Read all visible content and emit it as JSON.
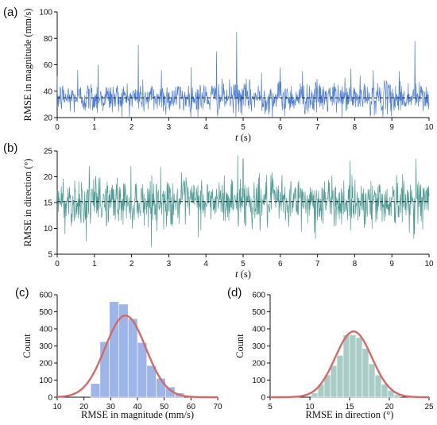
{
  "panel_labels": [
    "(a)",
    "(b)",
    "(c)",
    "(d)"
  ],
  "colors": {
    "magnitude": "#4f7fd6",
    "direction": "#4f9b95",
    "hist_magnitude": "#9db5e8",
    "hist_direction": "#a9ccc7",
    "fit_curve": "#d46a66",
    "mean_line": "#222222"
  },
  "chart_data": [
    {
      "id": "a",
      "type": "line",
      "xlabel_var": "t",
      "xlabel_unit": " (s)",
      "ylabel": "RMSE in magnitude (mm/s)",
      "xlim": [
        0,
        10
      ],
      "ylim": [
        20,
        100
      ],
      "xticks": [
        0,
        1,
        2,
        3,
        4,
        5,
        6,
        7,
        8,
        9,
        10
      ],
      "yticks": [
        20,
        40,
        60,
        80,
        100
      ],
      "mean": 35,
      "series": [
        {
          "description": "noisy RMSE time series, ~1000 samples over 10 s, fluctuating mostly 25-55 around mean ~35, isolated spikes up to ~85",
          "n_samples": 1000,
          "baseline": 35,
          "noise_sd": 6,
          "spikes": [
            [
              0.55,
              56
            ],
            [
              1.1,
              60
            ],
            [
              2.18,
              75
            ],
            [
              2.8,
              56
            ],
            [
              3.6,
              58
            ],
            [
              4.28,
              70
            ],
            [
              4.82,
              85
            ],
            [
              5.5,
              54
            ],
            [
              6.0,
              58
            ],
            [
              6.6,
              55
            ],
            [
              7.9,
              57
            ],
            [
              8.5,
              56
            ],
            [
              9.2,
              55
            ],
            [
              9.62,
              78
            ]
          ]
        }
      ]
    },
    {
      "id": "b",
      "type": "line",
      "xlabel_var": "t",
      "xlabel_unit": " (s)",
      "ylabel": "RMSE in direction (°)",
      "xlim": [
        0,
        10
      ],
      "ylim": [
        5,
        25
      ],
      "xticks": [
        0,
        1,
        2,
        3,
        4,
        5,
        6,
        7,
        8,
        9,
        10
      ],
      "yticks": [
        5,
        10,
        15,
        20,
        25
      ],
      "mean": 15.2,
      "series": [
        {
          "description": "noisy RMSE time series, ~1000 samples over 10 s, fluctuating mostly 10-21 around mean ~15, extremes ~7 and ~24",
          "n_samples": 1000,
          "baseline": 15.2,
          "noise_sd": 2.3,
          "spikes": [
            [
              0.78,
              7.5
            ],
            [
              4.85,
              24.2
            ],
            [
              5.0,
              23.5
            ],
            [
              6.95,
              8
            ],
            [
              9.65,
              23.5
            ]
          ]
        }
      ]
    },
    {
      "id": "c",
      "type": "bar",
      "subtype": "histogram",
      "xlabel": "RMSE in magnitude (mm/s)",
      "ylabel": "Count",
      "xlim": [
        10,
        70
      ],
      "ylim": [
        0,
        600
      ],
      "xticks": [
        10,
        20,
        30,
        40,
        50,
        60,
        70
      ],
      "yticks": [
        0,
        100,
        200,
        300,
        400,
        500,
        600
      ],
      "bin_edges": [
        22.5,
        26.0,
        29.5,
        33.0,
        36.5,
        40.0,
        43.5,
        47.0,
        50.5,
        54.0,
        57.5
      ],
      "counts": [
        80,
        325,
        560,
        545,
        460,
        320,
        185,
        110,
        60,
        25
      ],
      "fit": {
        "type": "normal",
        "mean": 35.5,
        "sd": 7.6,
        "peak": 478
      }
    },
    {
      "id": "d",
      "type": "bar",
      "subtype": "histogram",
      "xlabel": "RMSE in direction (°)",
      "ylabel": "Count",
      "xlim": [
        5,
        25
      ],
      "ylim": [
        0,
        600
      ],
      "xticks": [
        5,
        10,
        15,
        20,
        25
      ],
      "yticks": [
        0,
        100,
        200,
        300,
        400,
        500,
        600
      ],
      "bin_edges": [
        10.2,
        11.0,
        11.8,
        12.6,
        13.4,
        14.2,
        15.0,
        15.8,
        16.6,
        17.4,
        18.2,
        19.0,
        19.8,
        20.6,
        21.4
      ],
      "counts": [
        25,
        75,
        130,
        185,
        245,
        365,
        365,
        350,
        285,
        195,
        130,
        75,
        40,
        15
      ],
      "fit": {
        "type": "normal",
        "mean": 15.5,
        "sd": 2.3,
        "peak": 385
      }
    }
  ]
}
